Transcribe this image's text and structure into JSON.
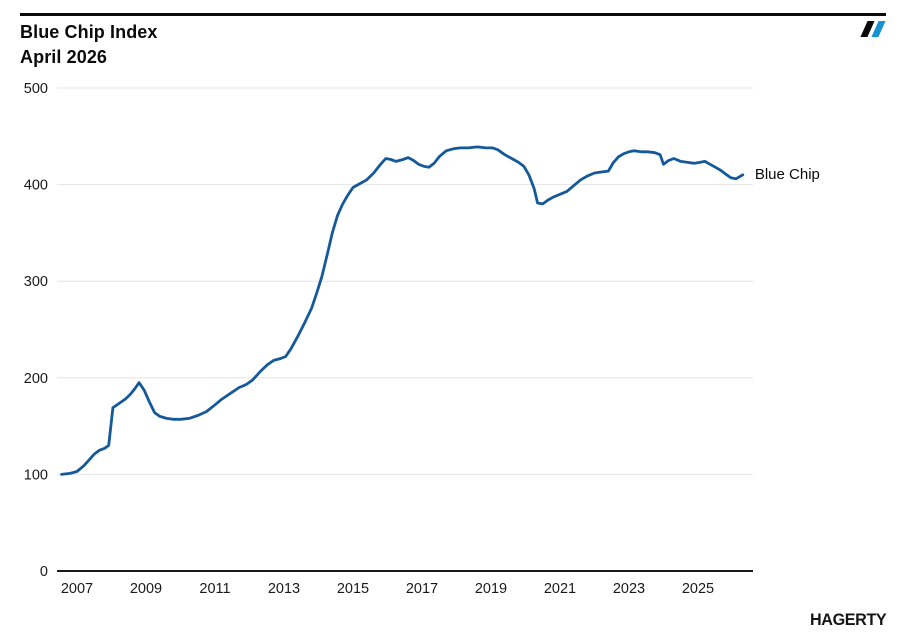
{
  "header": {
    "title": "Blue Chip Index",
    "subtitle": "April 2026"
  },
  "branding": {
    "wordmark": "HAGERTY",
    "logo_mark_icon": "double-slash-icon",
    "logo_black": "#0b0b0b",
    "logo_blue": "#1793d1"
  },
  "chart_data": {
    "type": "line",
    "title": "Blue Chip Index",
    "subtitle": "April 2026",
    "grid": "horizontal",
    "legend_position": "end-of-line",
    "line_color": "#15599a",
    "gridline_color": "#e4e4e4",
    "zero_axis_color": "#1a1a1a",
    "xlabel": "",
    "ylabel": "",
    "ylim": [
      0,
      500
    ],
    "xlim": [
      2006.4,
      2026.65
    ],
    "y_ticks": [
      0,
      100,
      200,
      300,
      400,
      500
    ],
    "x_ticks": [
      2007,
      2009,
      2011,
      2013,
      2015,
      2017,
      2019,
      2021,
      2023,
      2025
    ],
    "end_label": "Blue Chip",
    "series": [
      {
        "name": "Blue Chip",
        "points": [
          [
            2006.55,
            100
          ],
          [
            2006.8,
            101
          ],
          [
            2007.0,
            103
          ],
          [
            2007.2,
            109
          ],
          [
            2007.35,
            115
          ],
          [
            2007.5,
            121
          ],
          [
            2007.65,
            125
          ],
          [
            2007.8,
            127
          ],
          [
            2007.92,
            130
          ],
          [
            2008.04,
            169
          ],
          [
            2008.2,
            173
          ],
          [
            2008.4,
            178
          ],
          [
            2008.55,
            183
          ],
          [
            2008.7,
            190
          ],
          [
            2008.8,
            195
          ],
          [
            2008.95,
            187
          ],
          [
            2009.1,
            175
          ],
          [
            2009.25,
            164
          ],
          [
            2009.4,
            160
          ],
          [
            2009.6,
            158
          ],
          [
            2009.8,
            157
          ],
          [
            2010.0,
            157
          ],
          [
            2010.25,
            158
          ],
          [
            2010.5,
            161
          ],
          [
            2010.75,
            165
          ],
          [
            2011.0,
            172
          ],
          [
            2011.2,
            178
          ],
          [
            2011.45,
            184
          ],
          [
            2011.7,
            190
          ],
          [
            2011.9,
            193
          ],
          [
            2012.1,
            198
          ],
          [
            2012.3,
            206
          ],
          [
            2012.5,
            213
          ],
          [
            2012.7,
            218
          ],
          [
            2012.9,
            220
          ],
          [
            2013.05,
            222
          ],
          [
            2013.2,
            230
          ],
          [
            2013.4,
            243
          ],
          [
            2013.6,
            257
          ],
          [
            2013.8,
            272
          ],
          [
            2013.95,
            288
          ],
          [
            2014.1,
            305
          ],
          [
            2014.25,
            327
          ],
          [
            2014.4,
            350
          ],
          [
            2014.55,
            368
          ],
          [
            2014.7,
            380
          ],
          [
            2014.85,
            389
          ],
          [
            2015.0,
            397
          ],
          [
            2015.2,
            401
          ],
          [
            2015.4,
            405
          ],
          [
            2015.6,
            412
          ],
          [
            2015.8,
            421
          ],
          [
            2015.95,
            427
          ],
          [
            2016.1,
            426
          ],
          [
            2016.25,
            424
          ],
          [
            2016.45,
            426
          ],
          [
            2016.6,
            428
          ],
          [
            2016.75,
            425
          ],
          [
            2016.9,
            421
          ],
          [
            2017.05,
            419
          ],
          [
            2017.2,
            418
          ],
          [
            2017.35,
            422
          ],
          [
            2017.5,
            429
          ],
          [
            2017.7,
            435
          ],
          [
            2017.9,
            437
          ],
          [
            2018.1,
            438
          ],
          [
            2018.35,
            438
          ],
          [
            2018.6,
            439
          ],
          [
            2018.85,
            438
          ],
          [
            2019.05,
            438
          ],
          [
            2019.2,
            436
          ],
          [
            2019.4,
            431
          ],
          [
            2019.6,
            427
          ],
          [
            2019.8,
            423
          ],
          [
            2019.95,
            419
          ],
          [
            2020.1,
            410
          ],
          [
            2020.25,
            396
          ],
          [
            2020.35,
            381
          ],
          [
            2020.5,
            380
          ],
          [
            2020.65,
            384
          ],
          [
            2020.8,
            387
          ],
          [
            2021.0,
            390
          ],
          [
            2021.2,
            393
          ],
          [
            2021.4,
            399
          ],
          [
            2021.6,
            405
          ],
          [
            2021.8,
            409
          ],
          [
            2022.0,
            412
          ],
          [
            2022.2,
            413
          ],
          [
            2022.4,
            414
          ],
          [
            2022.55,
            423
          ],
          [
            2022.7,
            429
          ],
          [
            2022.85,
            432
          ],
          [
            2023.0,
            434
          ],
          [
            2023.15,
            435
          ],
          [
            2023.35,
            434
          ],
          [
            2023.55,
            434
          ],
          [
            2023.75,
            433
          ],
          [
            2023.9,
            431
          ],
          [
            2024.0,
            421
          ],
          [
            2024.15,
            425
          ],
          [
            2024.3,
            427
          ],
          [
            2024.5,
            424
          ],
          [
            2024.7,
            423
          ],
          [
            2024.9,
            422
          ],
          [
            2025.05,
            423
          ],
          [
            2025.2,
            424
          ],
          [
            2025.35,
            421
          ],
          [
            2025.5,
            418
          ],
          [
            2025.65,
            415
          ],
          [
            2025.8,
            411
          ],
          [
            2025.95,
            407
          ],
          [
            2026.1,
            406
          ],
          [
            2026.3,
            410
          ]
        ]
      }
    ]
  }
}
